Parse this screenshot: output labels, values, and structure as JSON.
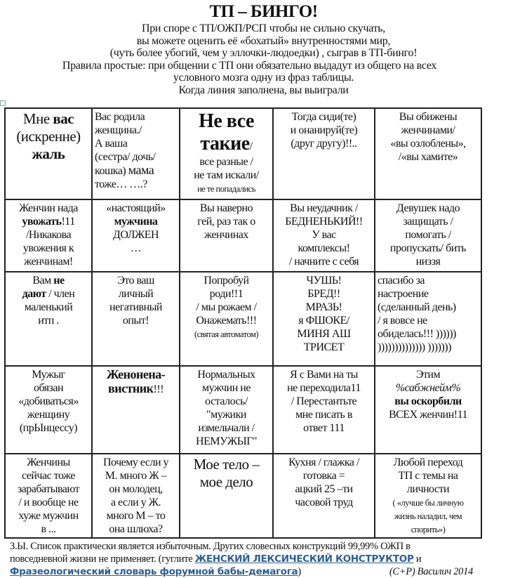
{
  "title": "ТП – БИНГО!",
  "intro": [
    "При споре с  ТП/ОЖП/РСП чтобы не сильно скучать,",
    "вы можете оценить  её «бохатый» внутренностями мир,",
    "(чуть более убогий, чем у эллочки-людоедки) , сыграв в ТП-бинго!",
    "Правила простые: при общении с ТП они обязательно выдадут из общего на всех",
    "условного мозга одну из фраз таблицы.",
    "Когда линия заполнена, вы выиграли"
  ],
  "grid": [
    [
      {
        "lines": [
          [
            {
              "t": "Мне ",
              "c": "s-l"
            },
            {
              "t": "вас",
              "c": "s-l b"
            }
          ],
          [
            {
              "t": "(искренне)",
              "c": "s-l"
            }
          ],
          [
            {
              "t": "жаль",
              "c": "s-l b"
            }
          ]
        ]
      },
      {
        "lines": [
          [
            {
              "t": "Вас родила"
            }
          ],
          [
            {
              "t": "женщина./"
            }
          ],
          [
            {
              "t": "А ваша"
            }
          ],
          [
            {
              "t": "(сестра/ дочь/"
            }
          ],
          [
            {
              "t": "кошка) "
            },
            {
              "t": "мама",
              "c": "s-m"
            }
          ],
          [
            {
              "t": "тоже…  ….?"
            }
          ]
        ],
        "align": "left"
      },
      {
        "lines": [
          [
            {
              "t": "Не все",
              "c": "s-xl"
            }
          ],
          [
            {
              "t": "такие",
              "c": "s-xl"
            },
            {
              "t": "/"
            }
          ],
          [
            {
              "t": "все разные /"
            }
          ],
          [
            {
              "t": "не там искали/"
            }
          ],
          [
            {
              "t": "не те попадались",
              "c": "s-s"
            }
          ]
        ]
      },
      {
        "lines": [
          [
            {
              "t": "Тогда сиди(те)"
            }
          ],
          [
            {
              "t": "и онанируй(те)"
            }
          ],
          [
            {
              "t": "(друг другу)!!.."
            }
          ]
        ]
      },
      {
        "lines": [
          [
            {
              "t": "Вы обижены"
            }
          ],
          [
            {
              "t": "женчинами/"
            }
          ],
          [
            {
              "t": "«вы озлоблены»,"
            }
          ],
          [
            {
              "t": "/«вы хамите»"
            }
          ]
        ]
      }
    ],
    [
      {
        "lines": [
          [
            {
              "t": "Женчин нада"
            }
          ],
          [
            {
              "t": "увожать",
              "c": "b"
            },
            {
              "t": "!11"
            }
          ],
          [
            {
              "t": "/Никакова"
            }
          ],
          [
            {
              "t": "увожения  к"
            }
          ],
          [
            {
              "t": "женчинам!"
            }
          ]
        ]
      },
      {
        "lines": [
          [
            {
              "t": "«настоящий»"
            }
          ],
          [
            {
              "t": "мужчина",
              "c": "b"
            }
          ],
          [
            {
              "t": "ДОЛЖЕН"
            }
          ],
          [
            {
              "t": "…"
            }
          ]
        ]
      },
      {
        "lines": [
          [
            {
              "t": "Вы наверно"
            }
          ],
          [
            {
              "t": "гей, раз так о"
            }
          ],
          [
            {
              "t": "женчинах"
            }
          ]
        ]
      },
      {
        "lines": [
          [
            {
              "t": "Вы неудачник /"
            }
          ],
          [
            {
              "t": "БЕДНЕНЬКИЙ!!"
            }
          ],
          [
            {
              "t": "У вас"
            }
          ],
          [
            {
              "t": "комплексы!"
            }
          ],
          [
            {
              "t": "/ начните с себя"
            }
          ]
        ]
      },
      {
        "lines": [
          [
            {
              "t": "Девушек надо"
            }
          ],
          [
            {
              "t": "защищать /"
            }
          ],
          [
            {
              "t": "помогать /"
            }
          ],
          [
            {
              "t": "пропускать/ бить"
            }
          ],
          [
            {
              "t": "низзя"
            }
          ]
        ]
      }
    ],
    [
      {
        "lines": [
          [
            {
              "t": "Вам "
            },
            {
              "t": "не",
              "c": "b"
            }
          ],
          [
            {
              "t": "дают",
              "c": "b"
            },
            {
              "t": " /  член"
            }
          ],
          [
            {
              "t": "маленький"
            }
          ],
          [
            {
              "t": "итп ."
            }
          ]
        ]
      },
      {
        "lines": [
          [
            {
              "t": "Это ваш"
            }
          ],
          [
            {
              "t": "личный"
            }
          ],
          [
            {
              "t": "негативный"
            }
          ],
          [
            {
              "t": "опыт!"
            }
          ]
        ]
      },
      {
        "lines": [
          [
            {
              "t": "Попробуй"
            }
          ],
          [
            {
              "t": "роди!!1"
            }
          ],
          [
            {
              "t": "/ мы рожаем /"
            }
          ],
          [
            {
              "t": "Онажемать!!!"
            }
          ],
          [
            {
              "t": "(святая автоматом)",
              "c": "s-s"
            }
          ]
        ]
      },
      {
        "lines": [
          [
            {
              "t": "ЧУШЬ!"
            }
          ],
          [
            {
              "t": "БРЕД!!"
            }
          ],
          [
            {
              "t": "МРАЗЬ!"
            }
          ],
          [
            {
              "t": "я ФШОКЕ/"
            }
          ],
          [
            {
              "t": "МИНЯ АШ"
            }
          ],
          [
            {
              "t": "ТРИСЕТ"
            }
          ]
        ]
      },
      {
        "lines": [
          [
            {
              "t": "спасибо за"
            }
          ],
          [
            {
              "t": "настроение"
            }
          ],
          [
            {
              "t": "(сделанный день)"
            }
          ],
          [
            {
              "t": "/ я вовсе не"
            }
          ],
          [
            {
              "t": "обиделась!!! ))))))"
            }
          ],
          [
            {
              "t": ")))))))))))))) )))))))"
            }
          ]
        ],
        "align": "left"
      }
    ],
    [
      {
        "lines": [
          [
            {
              "t": "Мужыг"
            }
          ],
          [
            {
              "t": "обязан"
            }
          ],
          [
            {
              "t": "«добиваться»"
            }
          ],
          [
            {
              "t": "женщину"
            }
          ],
          [
            {
              "t": "(прЫнцессу)"
            }
          ]
        ]
      },
      {
        "lines": [
          [
            {
              "t": "Женонена-",
              "c": "s-m b"
            }
          ],
          [
            {
              "t": "вистник",
              "c": "s-m b"
            },
            {
              "t": "!!!"
            }
          ]
        ]
      },
      {
        "lines": [
          [
            {
              "t": "Нормальных"
            }
          ],
          [
            {
              "t": "мужчин не"
            }
          ],
          [
            {
              "t": "осталось/"
            }
          ],
          [
            {
              "t": "\"мужики"
            }
          ],
          [
            {
              "t": "измельчали /"
            }
          ],
          [
            {
              "t": "НЕМУЖЫГ\""
            }
          ]
        ]
      },
      {
        "lines": [
          [
            {
              "t": "Я с Вами на ты"
            }
          ],
          [
            {
              "t": "не переходила11"
            }
          ],
          [
            {
              "t": "/  Перестантьте"
            }
          ],
          [
            {
              "t": "мне писать в"
            }
          ],
          [
            {
              "t": "ответ 111"
            }
          ]
        ]
      },
      {
        "lines": [
          [
            {
              "t": "Этим"
            }
          ],
          [
            {
              "t": "%сабжнейм%",
              "c": "i"
            }
          ],
          [
            {
              "t": "вы оскорбили",
              "c": "b"
            }
          ],
          [
            {
              "t": "ВСЕХ женчин!11"
            }
          ]
        ]
      }
    ],
    [
      {
        "lines": [
          [
            {
              "t": "Женчины"
            }
          ],
          [
            {
              "t": "сейчас тоже"
            }
          ],
          [
            {
              "t": "зарабатывают"
            }
          ],
          [
            {
              "t": "/ и вообще не"
            }
          ],
          [
            {
              "t": "хуже мужчин"
            }
          ],
          [
            {
              "t": "в ..."
            }
          ]
        ]
      },
      {
        "lines": [
          [
            {
              "t": "Почему если у"
            }
          ],
          [
            {
              "t": "М. много  Ж –"
            }
          ],
          [
            {
              "t": "он молодец,"
            }
          ],
          [
            {
              "t": "а если у Ж."
            }
          ],
          [
            {
              "t": "много М – то"
            }
          ],
          [
            {
              "t": "она шлюха?"
            }
          ]
        ]
      },
      {
        "lines": [
          [
            {
              "t": "Мое тело –",
              "c": "s-l"
            }
          ],
          [
            {
              "t": "мое дело",
              "c": "s-l"
            }
          ]
        ]
      },
      {
        "lines": [
          [
            {
              "t": "Кухня / глажка /"
            }
          ],
          [
            {
              "t": "готовка ="
            }
          ],
          [
            {
              "t": "ацкий 25 –ти"
            }
          ],
          [
            {
              "t": "часовой труд"
            }
          ]
        ]
      },
      {
        "lines": [
          [
            {
              "t": "Любой переход"
            }
          ],
          [
            {
              "t": "ТП с темы на"
            }
          ],
          [
            {
              "t": "личности"
            }
          ],
          [
            {
              "t": "( «лучше бы личную",
              "c": "s-s"
            }
          ],
          [
            {
              "t": "жизнь наладил, чем",
              "c": "s-s"
            }
          ],
          [
            {
              "t": "спорить»)",
              "c": "s-s"
            }
          ]
        ]
      }
    ]
  ],
  "footer": {
    "text1": "З.Ы. Список практически является избыточным. Других  словесных конструкций 99,99%  ОЖП в",
    "text2": "повседневной жизни не применяет. (гуглите ",
    "link1": "ЖЕНСКИЙ ЛЕКСИЧЕСКИЙ КОНСТРУКТОР",
    "and": " и",
    "link2": "Фразеологический словарь форумной бабы-демагога",
    "close": ")",
    "signature": "(С+Р) Василич 2014"
  },
  "colors": {
    "link": "#2e5f8f",
    "spellcheck": "#dd3333"
  }
}
